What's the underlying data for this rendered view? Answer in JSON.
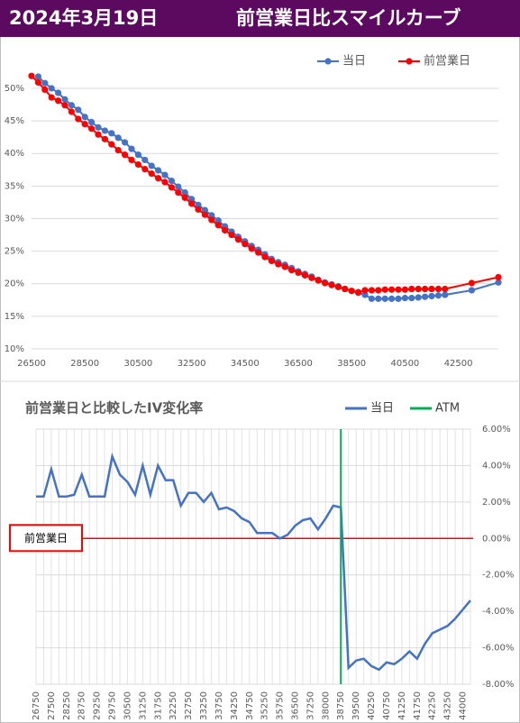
{
  "header": {
    "date": "2024年3月19日",
    "title": "前営業日比スマイルカーブ"
  },
  "chart_data": [
    {
      "type": "line",
      "x": [
        26500,
        26750,
        27000,
        27250,
        27500,
        27750,
        28000,
        28250,
        28500,
        28750,
        29000,
        29250,
        29500,
        29750,
        30000,
        30250,
        30500,
        30750,
        31000,
        31250,
        31500,
        31750,
        32000,
        32250,
        32500,
        32750,
        33000,
        33250,
        33500,
        33750,
        34000,
        34250,
        34500,
        34750,
        35000,
        35250,
        35500,
        35750,
        36000,
        36250,
        36500,
        36750,
        37000,
        37250,
        37500,
        37750,
        38000,
        38250,
        38500,
        38750,
        39000,
        39250,
        39500,
        39750,
        40000,
        40250,
        40500,
        40750,
        41000,
        41250,
        41500,
        41750,
        42000,
        43000,
        44000
      ],
      "series": [
        {
          "name": "当日",
          "color": "#4472c4",
          "values": [
            null,
            51.8,
            50.8,
            50.0,
            49.3,
            48.3,
            47.4,
            46.7,
            45.6,
            44.8,
            44.0,
            43.5,
            43.1,
            42.4,
            41.7,
            40.7,
            39.8,
            39.0,
            38.1,
            37.4,
            36.7,
            35.8,
            34.9,
            34.0,
            33.0,
            32.1,
            31.3,
            30.5,
            29.7,
            28.8,
            28.0,
            27.2,
            26.5,
            25.8,
            25.2,
            24.5,
            23.8,
            23.3,
            22.9,
            22.4,
            21.9,
            21.5,
            21.1,
            20.6,
            20.2,
            19.9,
            19.6,
            19.2,
            18.9,
            18.6,
            18.3,
            17.7,
            17.7,
            17.7,
            17.7,
            17.7,
            17.8,
            17.8,
            17.9,
            18.0,
            18.1,
            18.2,
            18.3,
            19.0,
            20.2
          ]
        },
        {
          "name": "前営業日",
          "color": "#ff0000",
          "values": [
            51.9,
            50.9,
            49.8,
            48.6,
            48.1,
            47.4,
            46.4,
            45.3,
            44.5,
            43.8,
            42.9,
            42.2,
            41.4,
            40.5,
            39.8,
            39.0,
            38.3,
            37.6,
            36.9,
            36.2,
            35.6,
            34.8,
            34.0,
            33.2,
            32.3,
            31.4,
            30.6,
            29.8,
            29.0,
            28.2,
            27.5,
            26.8,
            26.1,
            25.4,
            24.8,
            24.1,
            23.5,
            23.0,
            22.6,
            22.1,
            21.7,
            21.3,
            20.9,
            20.5,
            20.1,
            19.8,
            19.5,
            19.2,
            18.9,
            18.7,
            19.0,
            19.0,
            19.0,
            19.1,
            19.1,
            19.1,
            19.1,
            19.2,
            19.2,
            19.2,
            19.2,
            19.2,
            19.2,
            20.1,
            21.0
          ]
        }
      ],
      "xlim": [
        26500,
        44000
      ],
      "xticks": [
        26500,
        28500,
        30500,
        32500,
        34500,
        36500,
        38500,
        40500,
        42500
      ],
      "ylim": [
        10,
        52
      ],
      "yticks": [
        {
          "value": 10,
          "label": "10%"
        },
        {
          "value": 15,
          "label": "15%"
        },
        {
          "value": 20,
          "label": "20%"
        },
        {
          "value": 25,
          "label": "25%"
        },
        {
          "value": 30,
          "label": "30%"
        },
        {
          "value": 35,
          "label": "35%"
        },
        {
          "value": 40,
          "label": "40%"
        },
        {
          "value": 45,
          "label": "45%"
        },
        {
          "value": 50,
          "label": "50%"
        }
      ],
      "grid": true,
      "legend": "top-right"
    },
    {
      "type": "line",
      "title": "前営業日と比較したIV変化率",
      "categories": [
        26750,
        null,
        27500,
        null,
        28250,
        null,
        28750,
        null,
        29250,
        null,
        29750,
        null,
        30500,
        null,
        31250,
        null,
        31750,
        null,
        32250,
        null,
        32750,
        null,
        33250,
        null,
        33750,
        null,
        34250,
        null,
        34750,
        null,
        35250,
        null,
        35750,
        null,
        36500,
        null,
        37250,
        null,
        38000,
        null,
        38750,
        null,
        39500,
        null,
        40250,
        null,
        40750,
        null,
        41250,
        null,
        41750,
        null,
        42250,
        null,
        43250,
        null,
        44000,
        null
      ],
      "series": [
        {
          "name": "当日",
          "color": "#4472c4",
          "values": [
            2.3,
            2.3,
            3.8,
            2.3,
            2.3,
            2.4,
            3.5,
            2.3,
            2.3,
            2.3,
            4.5,
            3.5,
            3.1,
            2.4,
            4.0,
            2.4,
            4.0,
            3.2,
            3.2,
            1.8,
            2.5,
            2.5,
            2.0,
            2.5,
            1.6,
            1.7,
            1.5,
            1.1,
            0.9,
            0.3,
            0.3,
            0.3,
            0.0,
            0.2,
            0.7,
            1.0,
            1.1,
            0.5,
            1.1,
            1.8,
            1.7,
            -7.1,
            -6.7,
            -6.6,
            -7.0,
            -7.2,
            -6.8,
            -6.9,
            -6.6,
            -6.2,
            -6.6,
            -5.8,
            -5.2,
            -5.0,
            -4.8,
            -4.4,
            -3.9,
            -3.4
          ]
        }
      ],
      "atm": {
        "name": "ATM",
        "color": "#00b050",
        "value": 38750
      },
      "reference": {
        "label": "前営業日",
        "value": 0,
        "color": "#ff0000"
      },
      "ylim": [
        -8,
        6
      ],
      "yticks": [
        {
          "value": 6,
          "label": "6.00%"
        },
        {
          "value": 4,
          "label": "4.00%"
        },
        {
          "value": 2,
          "label": "2.00%"
        },
        {
          "value": 0,
          "label": "0.00%"
        },
        {
          "value": -2,
          "label": "-2.00%"
        },
        {
          "value": -4,
          "label": "-4.00%"
        },
        {
          "value": -6,
          "label": "-6.00%"
        },
        {
          "value": -8,
          "label": "-8.00%"
        }
      ],
      "grid": true,
      "legend": "top-right"
    }
  ]
}
